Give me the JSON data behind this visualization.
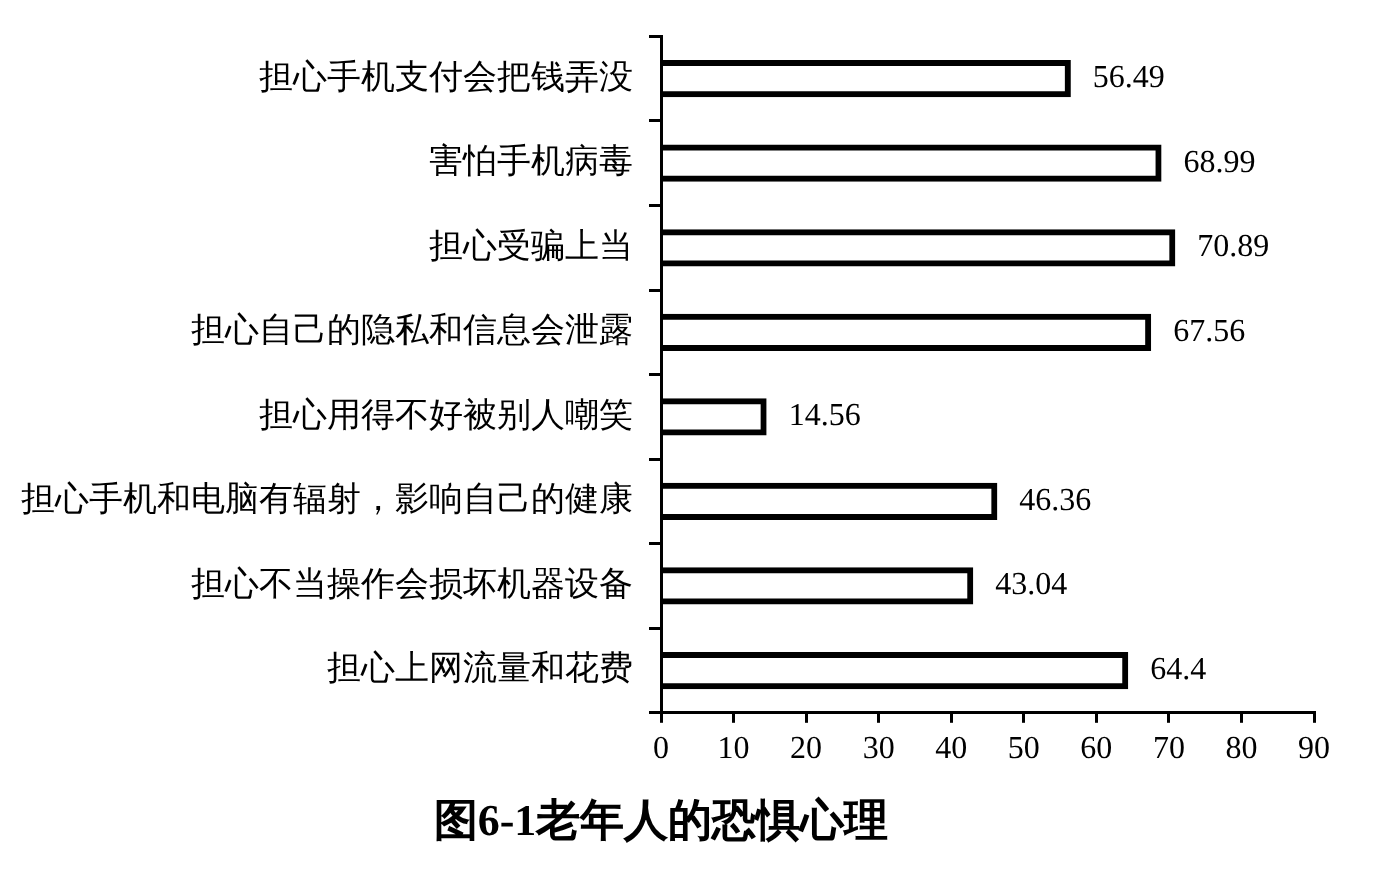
{
  "chart_data": {
    "type": "bar",
    "orientation": "horizontal",
    "title": "图6-1老年人的恐惧心理",
    "categories": [
      "担心手机支付会把钱弄没",
      "害怕手机病毒",
      "担心受骗上当",
      "担心自己的隐私和信息会泄露",
      "担心用得不好被别人嘲笑",
      "担心手机和电脑有辐射，影响自己的健康",
      "担心不当操作会损坏机器设备",
      "担心上网流量和花费"
    ],
    "values": [
      56.49,
      68.99,
      70.89,
      67.56,
      14.56,
      46.36,
      43.04,
      64.4
    ],
    "color": "#000000",
    "xlim": [
      0,
      90
    ],
    "xticks": [
      0,
      10,
      20,
      30,
      40,
      50,
      60,
      70,
      80,
      90
    ],
    "data_labels": true
  }
}
